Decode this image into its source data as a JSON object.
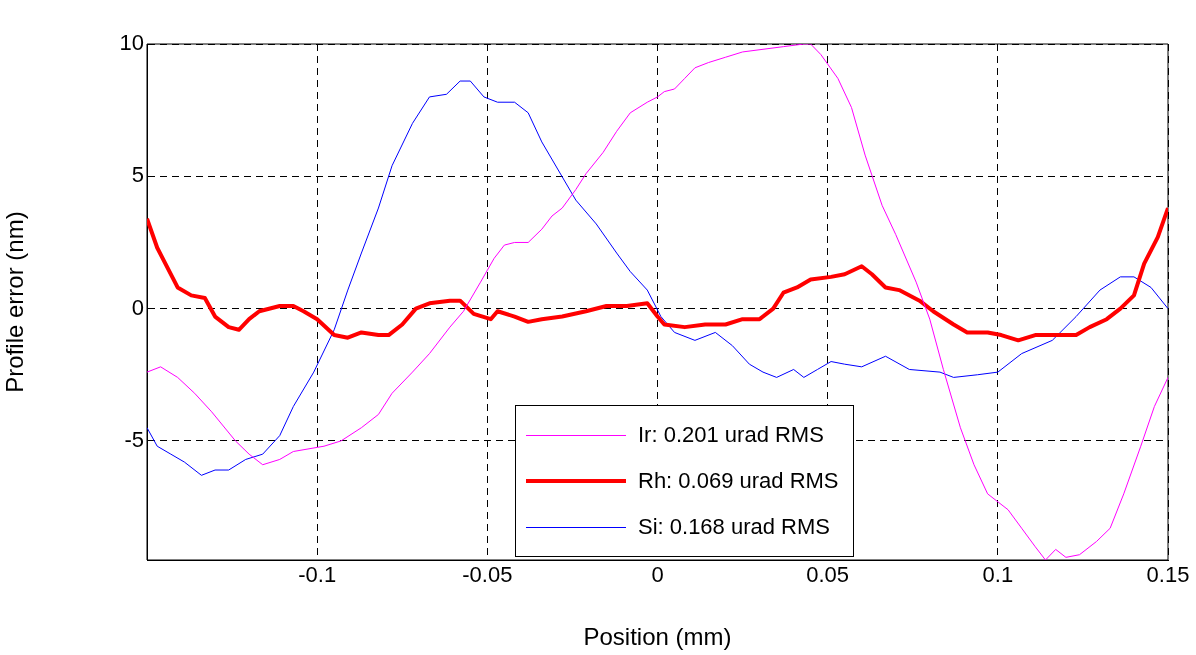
{
  "chart_data": {
    "type": "line",
    "xlabel": "Position (mm)",
    "ylabel": "Profile error (nm)",
    "xlim": [
      -0.15,
      0.15
    ],
    "ylim": [
      -9.5,
      10
    ],
    "xticks": [
      -0.1,
      -0.05,
      0,
      0.05,
      0.1,
      0.15
    ],
    "yticks": [
      -5,
      0,
      5,
      10
    ],
    "grid": true,
    "legend": "bottom",
    "marker": "none",
    "line_style": "solid",
    "series": [
      {
        "name": "Ir: 0.201 urad RMS",
        "color": "#ff00ff",
        "x": [
          -0.15,
          -0.146,
          -0.141,
          -0.136,
          -0.131,
          -0.124,
          -0.12,
          -0.116,
          -0.111,
          -0.107,
          -0.098,
          -0.093,
          -0.087,
          -0.082,
          -0.078,
          -0.072,
          -0.067,
          -0.061,
          -0.057,
          -0.052,
          -0.048,
          -0.045,
          -0.042,
          -0.038,
          -0.034,
          -0.031,
          -0.028,
          -0.024,
          -0.021,
          -0.016,
          -0.012,
          -0.008,
          -0.003,
          0,
          0.002,
          0.005,
          0.008,
          0.011,
          0.015,
          0.02,
          0.025,
          0.031,
          0.037,
          0.043,
          0.045,
          0.048,
          0.053,
          0.057,
          0.061,
          0.066,
          0.07,
          0.076,
          0.08,
          0.084,
          0.089,
          0.093,
          0.097,
          0.103,
          0.107,
          0.111,
          0.114,
          0.117,
          0.12,
          0.124,
          0.129,
          0.133,
          0.137,
          0.142,
          0.146,
          0.15
        ],
        "values": [
          -2.4,
          -2.2,
          -2.6,
          -3.2,
          -3.9,
          -5.0,
          -5.5,
          -5.9,
          -5.7,
          -5.4,
          -5.2,
          -5.0,
          -4.5,
          -4.0,
          -3.2,
          -2.4,
          -1.7,
          -0.7,
          -0.1,
          1.0,
          1.9,
          2.4,
          2.5,
          2.5,
          3.0,
          3.5,
          3.8,
          4.5,
          5.1,
          5.9,
          6.7,
          7.4,
          7.8,
          8.0,
          8.2,
          8.3,
          8.7,
          9.1,
          9.3,
          9.5,
          9.7,
          9.8,
          9.9,
          10.0,
          10.0,
          9.6,
          8.7,
          7.6,
          5.8,
          3.9,
          2.8,
          1.0,
          -0.4,
          -2.3,
          -4.5,
          -5.9,
          -7.0,
          -7.6,
          -8.3,
          -9.0,
          -9.5,
          -9.1,
          -9.4,
          -9.3,
          -8.8,
          -8.3,
          -7.0,
          -5.2,
          -3.7,
          -2.6
        ]
      },
      {
        "name": "Rh: 0.069 urad RMS",
        "color": "#ff0000",
        "x": [
          -0.15,
          -0.147,
          -0.141,
          -0.137,
          -0.133,
          -0.13,
          -0.126,
          -0.123,
          -0.12,
          -0.117,
          -0.111,
          -0.107,
          -0.104,
          -0.1,
          -0.095,
          -0.091,
          -0.087,
          -0.082,
          -0.079,
          -0.075,
          -0.071,
          -0.067,
          -0.061,
          -0.058,
          -0.054,
          -0.049,
          -0.047,
          -0.042,
          -0.038,
          -0.034,
          -0.028,
          -0.021,
          -0.015,
          -0.009,
          -0.003,
          0,
          0.002,
          0.008,
          0.014,
          0.02,
          0.025,
          0.03,
          0.034,
          0.037,
          0.041,
          0.045,
          0.051,
          0.055,
          0.06,
          0.063,
          0.067,
          0.071,
          0.077,
          0.081,
          0.087,
          0.091,
          0.097,
          0.101,
          0.106,
          0.111,
          0.117,
          0.123,
          0.127,
          0.132,
          0.136,
          0.14,
          0.143,
          0.147,
          0.15
        ],
        "values": [
          3.4,
          2.3,
          0.8,
          0.5,
          0.4,
          -0.3,
          -0.7,
          -0.8,
          -0.4,
          -0.1,
          0.1,
          0.1,
          -0.1,
          -0.4,
          -1.0,
          -1.1,
          -0.9,
          -1.0,
          -1.0,
          -0.6,
          0.0,
          0.2,
          0.3,
          0.3,
          -0.2,
          -0.4,
          -0.1,
          -0.3,
          -0.5,
          -0.4,
          -0.3,
          -0.1,
          0.1,
          0.1,
          0.2,
          -0.3,
          -0.6,
          -0.7,
          -0.6,
          -0.6,
          -0.4,
          -0.4,
          0.0,
          0.6,
          0.8,
          1.1,
          1.2,
          1.3,
          1.6,
          1.3,
          0.8,
          0.7,
          0.3,
          -0.1,
          -0.6,
          -0.9,
          -0.9,
          -1.0,
          -1.2,
          -1.0,
          -1.0,
          -1.0,
          -0.7,
          -0.4,
          0.0,
          0.5,
          1.7,
          2.7,
          3.8
        ]
      },
      {
        "name": "Si: 0.168 urad RMS",
        "color": "#0000ff",
        "x": [
          -0.15,
          -0.147,
          -0.143,
          -0.139,
          -0.134,
          -0.13,
          -0.126,
          -0.121,
          -0.116,
          -0.111,
          -0.107,
          -0.101,
          -0.095,
          -0.091,
          -0.087,
          -0.082,
          -0.078,
          -0.072,
          -0.067,
          -0.062,
          -0.058,
          -0.055,
          -0.051,
          -0.047,
          -0.042,
          -0.038,
          -0.034,
          -0.029,
          -0.024,
          -0.018,
          -0.012,
          -0.008,
          -0.003,
          0.001,
          0.005,
          0.011,
          0.017,
          0.022,
          0.027,
          0.031,
          0.035,
          0.04,
          0.043,
          0.047,
          0.051,
          0.055,
          0.06,
          0.067,
          0.074,
          0.083,
          0.087,
          0.094,
          0.1,
          0.107,
          0.116,
          0.123,
          0.13,
          0.136,
          0.14,
          0.145,
          0.15
        ],
        "values": [
          -4.5,
          -5.2,
          -5.5,
          -5.8,
          -6.3,
          -6.1,
          -6.1,
          -5.7,
          -5.5,
          -4.8,
          -3.7,
          -2.4,
          -0.8,
          0.7,
          2.1,
          3.8,
          5.4,
          7.0,
          8.0,
          8.1,
          8.6,
          8.6,
          8.0,
          7.8,
          7.8,
          7.4,
          6.3,
          5.2,
          4.1,
          3.2,
          2.1,
          1.4,
          0.7,
          -0.3,
          -0.9,
          -1.2,
          -0.9,
          -1.4,
          -2.1,
          -2.4,
          -2.6,
          -2.3,
          -2.6,
          -2.3,
          -2.0,
          -2.1,
          -2.2,
          -1.8,
          -2.3,
          -2.4,
          -2.6,
          -2.5,
          -2.4,
          -1.7,
          -1.2,
          -0.3,
          0.7,
          1.2,
          1.2,
          0.8,
          0.0
        ]
      }
    ]
  }
}
